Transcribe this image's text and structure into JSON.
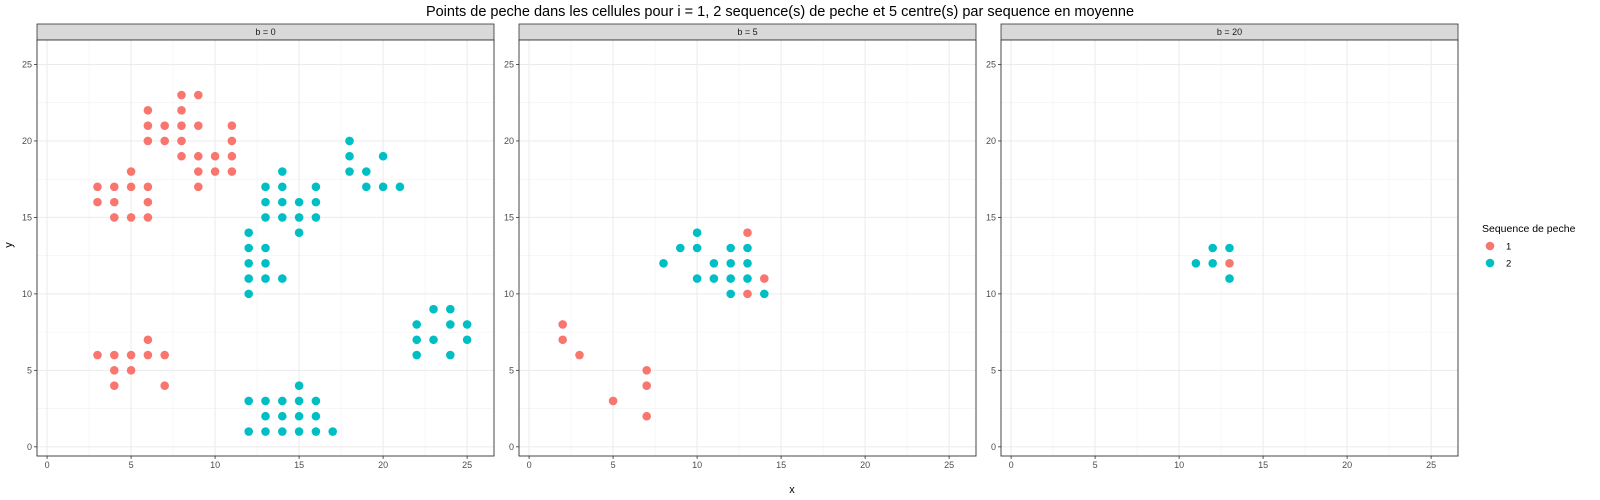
{
  "chart_data": {
    "type": "scatter",
    "title": "Points de peche dans les cellules pour i = 1, 2 sequence(s) de peche et 5 centre(s) par sequence en moyenne",
    "xlabel": "x",
    "ylabel": "y",
    "xlim": [
      -0.6,
      26.6
    ],
    "ylim": [
      -0.6,
      26.6
    ],
    "x_ticks": [
      0,
      5,
      10,
      15,
      20,
      25
    ],
    "y_ticks": [
      0,
      5,
      10,
      15,
      20,
      25
    ],
    "grid": true,
    "legend": {
      "title": "Sequence de peche",
      "position": "right",
      "entries": [
        {
          "label": "1",
          "color": "#F8766D"
        },
        {
          "label": "2",
          "color": "#00BFC4"
        }
      ]
    },
    "panels": [
      {
        "strip": "b = 0",
        "series": [
          {
            "name": "1",
            "color": "#F8766D",
            "points": [
              [
                8,
                23
              ],
              [
                9,
                23
              ],
              [
                6,
                22
              ],
              [
                8,
                22
              ],
              [
                6,
                21
              ],
              [
                7,
                21
              ],
              [
                8,
                21
              ],
              [
                9,
                21
              ],
              [
                11,
                21
              ],
              [
                6,
                20
              ],
              [
                7,
                20
              ],
              [
                8,
                20
              ],
              [
                11,
                20
              ],
              [
                8,
                19
              ],
              [
                9,
                19
              ],
              [
                10,
                19
              ],
              [
                11,
                19
              ],
              [
                9,
                18
              ],
              [
                10,
                18
              ],
              [
                11,
                18
              ],
              [
                5,
                18
              ],
              [
                9,
                17
              ],
              [
                3,
                17
              ],
              [
                4,
                17
              ],
              [
                5,
                17
              ],
              [
                6,
                17
              ],
              [
                3,
                16
              ],
              [
                4,
                16
              ],
              [
                6,
                16
              ],
              [
                4,
                15
              ],
              [
                5,
                15
              ],
              [
                6,
                15
              ],
              [
                6,
                7
              ],
              [
                3,
                6
              ],
              [
                4,
                6
              ],
              [
                5,
                6
              ],
              [
                6,
                6
              ],
              [
                7,
                6
              ],
              [
                4,
                5
              ],
              [
                5,
                5
              ],
              [
                4,
                4
              ],
              [
                7,
                4
              ]
            ]
          },
          {
            "name": "2",
            "color": "#00BFC4",
            "points": [
              [
                18,
                20
              ],
              [
                18,
                19
              ],
              [
                20,
                19
              ],
              [
                18,
                18
              ],
              [
                19,
                18
              ],
              [
                19,
                17
              ],
              [
                20,
                17
              ],
              [
                21,
                17
              ],
              [
                14,
                18
              ],
              [
                13,
                17
              ],
              [
                14,
                17
              ],
              [
                16,
                17
              ],
              [
                13,
                16
              ],
              [
                14,
                16
              ],
              [
                15,
                16
              ],
              [
                16,
                16
              ],
              [
                13,
                15
              ],
              [
                14,
                15
              ],
              [
                15,
                15
              ],
              [
                16,
                15
              ],
              [
                15,
                14
              ],
              [
                12,
                14
              ],
              [
                12,
                13
              ],
              [
                13,
                13
              ],
              [
                12,
                12
              ],
              [
                13,
                12
              ],
              [
                12,
                11
              ],
              [
                13,
                11
              ],
              [
                14,
                11
              ],
              [
                12,
                10
              ],
              [
                23,
                9
              ],
              [
                24,
                9
              ],
              [
                22,
                8
              ],
              [
                24,
                8
              ],
              [
                25,
                8
              ],
              [
                22,
                7
              ],
              [
                23,
                7
              ],
              [
                25,
                7
              ],
              [
                22,
                6
              ],
              [
                24,
                6
              ],
              [
                15,
                4
              ],
              [
                12,
                3
              ],
              [
                13,
                3
              ],
              [
                14,
                3
              ],
              [
                15,
                3
              ],
              [
                16,
                3
              ],
              [
                13,
                2
              ],
              [
                14,
                2
              ],
              [
                15,
                2
              ],
              [
                16,
                2
              ],
              [
                12,
                1
              ],
              [
                13,
                1
              ],
              [
                14,
                1
              ],
              [
                15,
                1
              ],
              [
                16,
                1
              ],
              [
                17,
                1
              ]
            ]
          }
        ]
      },
      {
        "strip": "b = 5",
        "series": [
          {
            "name": "1",
            "color": "#F8766D",
            "points": [
              [
                13,
                14
              ],
              [
                14,
                11
              ],
              [
                13,
                10
              ],
              [
                2,
                8
              ],
              [
                2,
                7
              ],
              [
                3,
                6
              ],
              [
                7,
                5
              ],
              [
                7,
                4
              ],
              [
                5,
                3
              ],
              [
                7,
                2
              ]
            ]
          },
          {
            "name": "2",
            "color": "#00BFC4",
            "points": [
              [
                10,
                14
              ],
              [
                9,
                13
              ],
              [
                10,
                13
              ],
              [
                12,
                13
              ],
              [
                13,
                13
              ],
              [
                8,
                12
              ],
              [
                11,
                12
              ],
              [
                12,
                12
              ],
              [
                13,
                12
              ],
              [
                10,
                11
              ],
              [
                11,
                11
              ],
              [
                12,
                11
              ],
              [
                13,
                11
              ],
              [
                12,
                10
              ],
              [
                14,
                10
              ]
            ]
          }
        ]
      },
      {
        "strip": "b = 20",
        "series": [
          {
            "name": "1",
            "color": "#F8766D",
            "points": [
              [
                13,
                12
              ]
            ]
          },
          {
            "name": "2",
            "color": "#00BFC4",
            "points": [
              [
                12,
                13
              ],
              [
                13,
                13
              ],
              [
                11,
                12
              ],
              [
                12,
                12
              ],
              [
                13,
                11
              ]
            ]
          }
        ]
      }
    ]
  }
}
